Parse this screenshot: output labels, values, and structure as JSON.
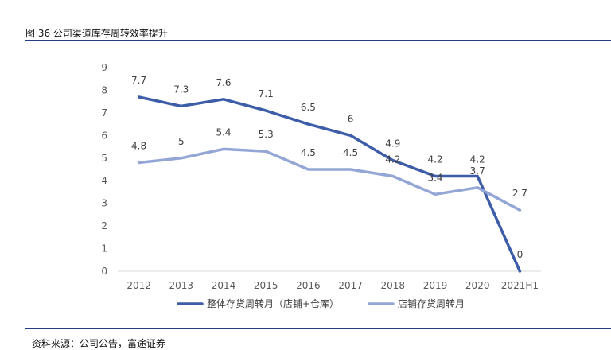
{
  "figure": {
    "title": "图 36 公司渠道库存周转效率提升",
    "source": "资料来源：公司公告，富途证券"
  },
  "chart_data": {
    "type": "line",
    "title": "",
    "xlabel": "",
    "ylabel": "",
    "categories": [
      "2012",
      "2013",
      "2014",
      "2015",
      "2016",
      "2017",
      "2018",
      "2019",
      "2020",
      "2021H1"
    ],
    "ylim": [
      0,
      9
    ],
    "yticks": [
      "0",
      "1",
      "2",
      "3",
      "4",
      "5",
      "6",
      "7",
      "8",
      "9"
    ],
    "grid": false,
    "legend": "bottom",
    "series": [
      {
        "name": "整体存货周转月（店铺+仓库）",
        "color": "#3d5da8",
        "values": [
          7.7,
          7.3,
          7.6,
          7.1,
          6.5,
          6.0,
          4.9,
          4.2,
          4.2,
          0
        ],
        "labels": [
          "7.7",
          "7.3",
          "7.6",
          "7.1",
          "6.5",
          "6",
          "4.9",
          "4.2",
          "4.2",
          "0"
        ]
      },
      {
        "name": "店铺存货周转月",
        "color": "#93a6d6",
        "values": [
          4.8,
          5.0,
          5.4,
          5.3,
          4.5,
          4.5,
          4.2,
          3.4,
          3.7,
          2.7
        ],
        "labels": [
          "4.8",
          "5",
          "5.4",
          "5.3",
          "4.5",
          "4.5",
          "4.2",
          "3.4",
          "3.7",
          "2.7"
        ]
      }
    ]
  }
}
